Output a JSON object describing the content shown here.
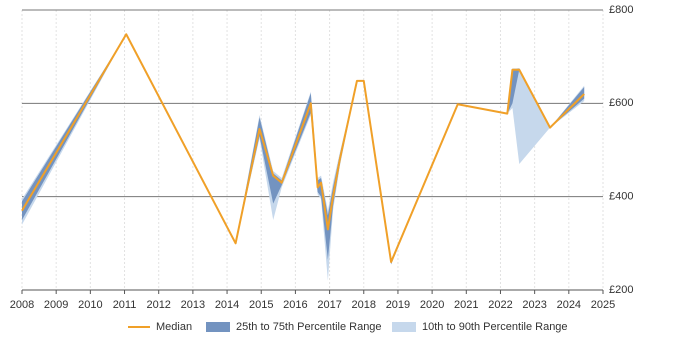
{
  "chart_data": {
    "type": "line",
    "x": [
      2008.0,
      2011.05,
      2014.25,
      2014.95,
      2015.35,
      2015.6,
      2016.45,
      2016.65,
      2016.75,
      2016.95,
      2017.1,
      2017.3,
      2017.8,
      2018.0,
      2018.8,
      2020.75,
      2022.2,
      2022.35,
      2022.55,
      2023.45,
      2024.45
    ],
    "xlim": [
      2008,
      2025
    ],
    "xticks": [
      2008,
      2009,
      2010,
      2011,
      2012,
      2013,
      2014,
      2015,
      2016,
      2017,
      2018,
      2019,
      2020,
      2021,
      2022,
      2023,
      2024,
      2025
    ],
    "ylim": [
      200,
      800
    ],
    "yticks": [
      {
        "value": 200,
        "label": "£200"
      },
      {
        "value": 400,
        "label": "£400"
      },
      {
        "value": 600,
        "label": "£600"
      },
      {
        "value": 800,
        "label": "£800"
      }
    ],
    "grid": true,
    "series": [
      {
        "name": "Median",
        "color": "#f0a028",
        "values": [
          370,
          748,
          300,
          545,
          445,
          430,
          600,
          420,
          430,
          330,
          400,
          480,
          648,
          648,
          260,
          598,
          578,
          672,
          672,
          548,
          620
        ]
      }
    ],
    "bands": [
      {
        "name": "10th to 90th Percentile Range",
        "color": "#c6d8ec",
        "low": [
          340,
          748,
          300,
          525,
          350,
          420,
          575,
          405,
          395,
          220,
          370,
          465,
          648,
          648,
          255,
          598,
          578,
          590,
          470,
          548,
          605
        ],
        "high": [
          395,
          748,
          300,
          575,
          455,
          440,
          625,
          440,
          445,
          370,
          430,
          495,
          648,
          648,
          265,
          598,
          578,
          675,
          675,
          548,
          638
        ]
      },
      {
        "name": "25th to 75th Percentile Range",
        "color": "#7393c0",
        "low": [
          350,
          748,
          300,
          530,
          385,
          425,
          580,
          410,
          400,
          265,
          380,
          470,
          648,
          648,
          255,
          598,
          578,
          600,
          672,
          548,
          610
        ],
        "high": [
          390,
          748,
          300,
          570,
          450,
          435,
          622,
          435,
          440,
          360,
          420,
          490,
          648,
          648,
          262,
          598,
          578,
          672,
          675,
          548,
          635
        ]
      }
    ]
  }
}
